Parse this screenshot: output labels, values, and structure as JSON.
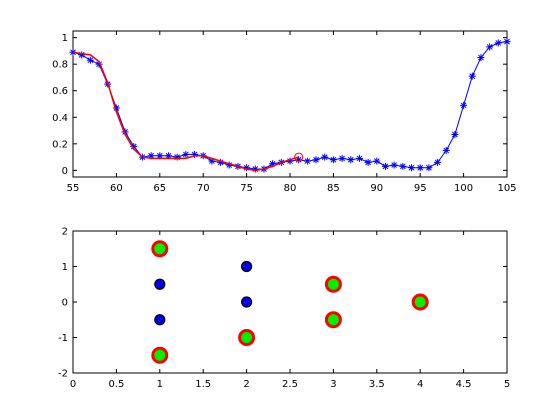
{
  "chart_data": [
    {
      "type": "line",
      "title": "",
      "xlabel": "",
      "ylabel": "",
      "xlim": [
        55,
        105
      ],
      "ylim": [
        -0.05,
        1.05
      ],
      "grid": false,
      "x_ticks": [
        "55",
        "60",
        "65",
        "70",
        "75",
        "80",
        "85",
        "90",
        "95",
        "100",
        "105"
      ],
      "y_ticks": [
        "0",
        "0.2",
        "0.4",
        "0.6",
        "0.8",
        "1"
      ],
      "x_tick_values": [
        55,
        60,
        65,
        70,
        75,
        80,
        85,
        90,
        95,
        100,
        105
      ],
      "y_tick_values": [
        0,
        0.2,
        0.4,
        0.6,
        0.8,
        1
      ],
      "series": [
        {
          "color": "#0000ff",
          "marker": "asterisk",
          "line": "solid",
          "x": [
            55,
            56,
            57,
            58,
            59,
            60,
            61,
            62,
            63,
            64,
            65,
            66,
            67,
            68,
            69,
            70,
            71,
            72,
            73,
            74,
            75,
            76,
            77,
            78,
            79,
            80,
            81,
            82,
            83,
            84,
            85,
            86,
            87,
            88,
            89,
            90,
            91,
            92,
            93,
            94,
            95,
            96,
            97,
            98,
            99,
            100,
            101,
            102,
            103,
            104,
            105
          ],
          "values": [
            0.89,
            0.87,
            0.83,
            0.8,
            0.65,
            0.47,
            0.29,
            0.18,
            0.1,
            0.11,
            0.11,
            0.11,
            0.1,
            0.12,
            0.12,
            0.11,
            0.07,
            0.06,
            0.04,
            0.03,
            0.02,
            0.01,
            0.01,
            0.05,
            0.06,
            0.07,
            0.08,
            0.07,
            0.08,
            0.1,
            0.08,
            0.09,
            0.08,
            0.09,
            0.06,
            0.07,
            0.03,
            0.04,
            0.03,
            0.02,
            0.02,
            0.02,
            0.06,
            0.15,
            0.27,
            0.49,
            0.71,
            0.85,
            0.93,
            0.96,
            0.97
          ]
        },
        {
          "color": "#ff0000",
          "marker": "none",
          "line": "solid",
          "x": [
            55,
            56,
            57,
            58,
            59,
            60,
            61,
            62,
            63,
            64,
            65,
            66,
            67,
            68,
            69,
            70,
            71,
            72,
            73,
            74,
            75,
            76,
            77,
            78,
            79,
            80,
            81
          ],
          "values": [
            0.89,
            0.88,
            0.87,
            0.82,
            0.66,
            0.44,
            0.27,
            0.16,
            0.1,
            0.09,
            0.09,
            0.09,
            0.09,
            0.09,
            0.11,
            0.11,
            0.09,
            0.07,
            0.05,
            0.03,
            0.01,
            0.0,
            0.01,
            0.03,
            0.06,
            0.08,
            0.1
          ]
        },
        {
          "color": "#ff0000",
          "marker": "circle",
          "line": "none",
          "x": [
            81
          ],
          "values": [
            0.1
          ]
        }
      ]
    },
    {
      "type": "scatter",
      "title": "",
      "xlabel": "",
      "ylabel": "",
      "xlim": [
        0,
        5
      ],
      "ylim": [
        -2,
        2
      ],
      "grid": false,
      "x_ticks": [
        "0",
        "0.5",
        "1",
        "1.5",
        "2",
        "2.5",
        "3",
        "3.5",
        "4",
        "4.5",
        "5"
      ],
      "y_ticks": [
        "-2",
        "-1",
        "0",
        "1",
        "2"
      ],
      "x_tick_values": [
        0,
        0.5,
        1,
        1.5,
        2,
        2.5,
        3,
        3.5,
        4,
        4.5,
        5
      ],
      "y_tick_values": [
        -2,
        -1,
        0,
        1,
        2
      ],
      "series": [
        {
          "marker": "circle",
          "fill": "#00ee00",
          "edge": "#ff0000",
          "x": [
            1,
            1,
            2,
            3,
            3,
            4
          ],
          "values": [
            1.5,
            -1.5,
            -1.0,
            0.5,
            -0.5,
            0.0
          ]
        },
        {
          "marker": "circle",
          "fill": "#0000ee",
          "edge": "#000000",
          "x": [
            1,
            1,
            2,
            2
          ],
          "values": [
            0.5,
            -0.5,
            1.0,
            0.0
          ]
        }
      ]
    }
  ]
}
